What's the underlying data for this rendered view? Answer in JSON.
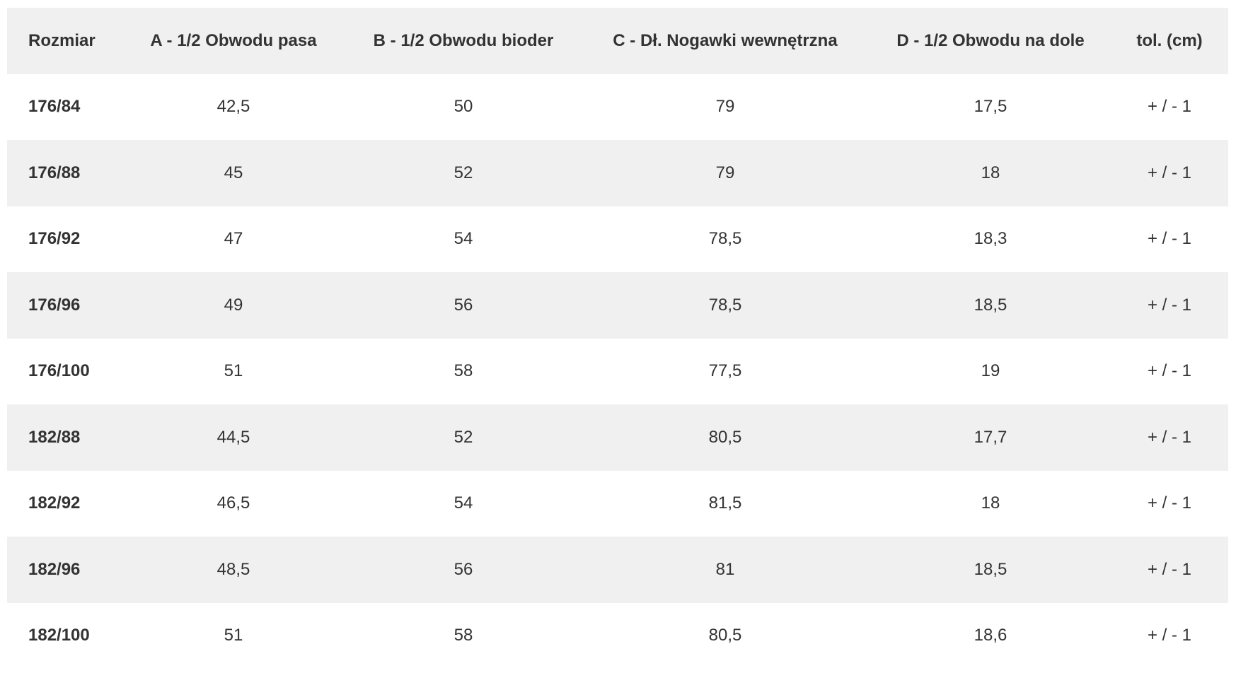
{
  "table": {
    "header": [
      "Rozmiar",
      "A - 1/2 Obwodu pasa",
      "B - 1/2 Obwodu bioder",
      "C - Dł. Nogawki wewnętrzna",
      "D - 1/2 Obwodu na dole",
      "tol. (cm)"
    ],
    "rows": [
      [
        "176/84",
        "42,5",
        "50",
        "79",
        "17,5",
        "+ / - 1"
      ],
      [
        "176/88",
        "45",
        "52",
        "79",
        "18",
        "+ / - 1"
      ],
      [
        "176/92",
        "47",
        "54",
        "78,5",
        "18,3",
        "+ / - 1"
      ],
      [
        "176/96",
        "49",
        "56",
        "78,5",
        "18,5",
        "+ / - 1"
      ],
      [
        "176/100",
        "51",
        "58",
        "77,5",
        "19",
        "+ / - 1"
      ],
      [
        "182/88",
        "44,5",
        "52",
        "80,5",
        "17,7",
        "+ / - 1"
      ],
      [
        "182/92",
        "46,5",
        "54",
        "81,5",
        "18",
        "+ / - 1"
      ],
      [
        "182/96",
        "48,5",
        "56",
        "81",
        "18,5",
        "+ / - 1"
      ],
      [
        "182/100",
        "51",
        "58",
        "80,5",
        "18,6",
        "+ / - 1"
      ]
    ]
  }
}
